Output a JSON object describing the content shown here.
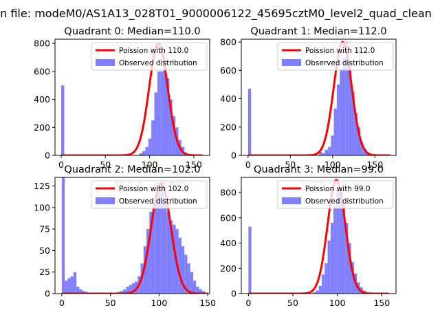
{
  "suptitle": "n file: modeM0/AS1A13_028T01_9000006122_45695cztM0_level2_quad_clean",
  "colors": {
    "poisson": "#ff0000",
    "observed": "#8080ff"
  },
  "chart_data": [
    {
      "type": "bar",
      "title": "Quadrant 0: Median=110.0",
      "legend": {
        "placement": "top-right",
        "line": "Poission with 110.0",
        "bars": "Observed distribution"
      },
      "xlim": [
        -7,
        168
      ],
      "ylim": [
        0,
        830
      ],
      "xticks": [
        0,
        50,
        100,
        150
      ],
      "yticks": [
        0,
        200,
        400,
        600,
        800
      ],
      "bin_width": 3.4,
      "observed": {
        "x": [
          0,
          88.4,
          91.8,
          95.2,
          98.6,
          102,
          105.4,
          108.8,
          112.2,
          115.6,
          119,
          122.4,
          125.8,
          129.2,
          132.6,
          136,
          139.4,
          142.8,
          146.2
        ],
        "y": [
          500,
          15,
          30,
          60,
          120,
          250,
          450,
          600,
          600,
          700,
          550,
          400,
          280,
          200,
          110,
          60,
          20,
          10,
          5
        ]
      },
      "poisson": {
        "lambda": 110.0,
        "x_range": [
          0,
          160
        ],
        "peak": 800
      }
    },
    {
      "type": "bar",
      "title": "Quadrant 1: Median=112.0",
      "legend": {
        "placement": "top-right",
        "line": "Poission with 112.0",
        "bars": "Observed distribution"
      },
      "xlim": [
        -8,
        175
      ],
      "ylim": [
        0,
        820
      ],
      "xticks": [
        0,
        50,
        100,
        150
      ],
      "yticks": [
        0,
        200,
        400,
        600,
        800
      ],
      "bin_width": 3.5,
      "observed": {
        "x": [
          0,
          84,
          87.5,
          91,
          94.5,
          98,
          101.5,
          105,
          108.5,
          112,
          115.5,
          119,
          122.5,
          126,
          129.5,
          133,
          136.5,
          140,
          143.5,
          147
        ],
        "y": [
          470,
          25,
          15,
          40,
          60,
          140,
          330,
          500,
          610,
          690,
          800,
          610,
          450,
          300,
          200,
          90,
          45,
          20,
          10,
          5
        ]
      },
      "poisson": {
        "lambda": 112.0,
        "x_range": [
          0,
          168
        ],
        "peak": 800
      }
    },
    {
      "type": "bar",
      "title": "Quadrant 2: Median=102.0",
      "legend": {
        "placement": "top-right",
        "line": "Poission with 102.0",
        "bars": "Observed distribution"
      },
      "xlim": [
        -7,
        152
      ],
      "ylim": [
        0,
        135
      ],
      "xticks": [
        0,
        50,
        100,
        150
      ],
      "yticks": [
        0,
        25,
        50,
        75,
        100,
        125
      ],
      "bin_width": 3.0,
      "observed": {
        "x": [
          0,
          3,
          6,
          9,
          12,
          15,
          18,
          21,
          24,
          27,
          57,
          60,
          63,
          66,
          69,
          72,
          75,
          78,
          81,
          84,
          87,
          90,
          93,
          96,
          99,
          102,
          105,
          108,
          111,
          114,
          117,
          120,
          123,
          126,
          129,
          132,
          135,
          138,
          141,
          144
        ],
        "y": [
          135,
          15,
          18,
          20,
          25,
          8,
          5,
          3,
          2,
          1,
          2,
          3,
          5,
          8,
          10,
          12,
          14,
          20,
          35,
          55,
          75,
          95,
          105,
          115,
          125,
          130,
          110,
          95,
          85,
          80,
          75,
          65,
          55,
          45,
          35,
          25,
          15,
          8,
          5,
          3
        ]
      },
      "poisson": {
        "lambda": 102.0,
        "x_range": [
          0,
          150
        ],
        "peak": 128
      }
    },
    {
      "type": "bar",
      "title": "Quadrant 3: Median=99.0",
      "legend": {
        "placement": "top-right",
        "line": "Poission with 99.0",
        "bars": "Observed distribution"
      },
      "xlim": [
        -8,
        166
      ],
      "ylim": [
        0,
        920
      ],
      "xticks": [
        0,
        50,
        100,
        150
      ],
      "yticks": [
        0,
        200,
        400,
        600,
        800
      ],
      "bin_width": 3.3,
      "observed": {
        "x": [
          0,
          72.6,
          75.9,
          79.2,
          82.5,
          85.8,
          89.1,
          92.4,
          95.7,
          99,
          102.3,
          105.6,
          108.9,
          112.2,
          115.5,
          118.8,
          122.1,
          125.4,
          128.7,
          132,
          135.3
        ],
        "y": [
          530,
          10,
          25,
          60,
          150,
          240,
          420,
          560,
          700,
          820,
          800,
          700,
          560,
          400,
          250,
          160,
          90,
          50,
          25,
          10,
          5
        ]
      },
      "poisson": {
        "lambda": 99.0,
        "x_range": [
          0,
          158
        ],
        "peak": 900
      }
    }
  ]
}
